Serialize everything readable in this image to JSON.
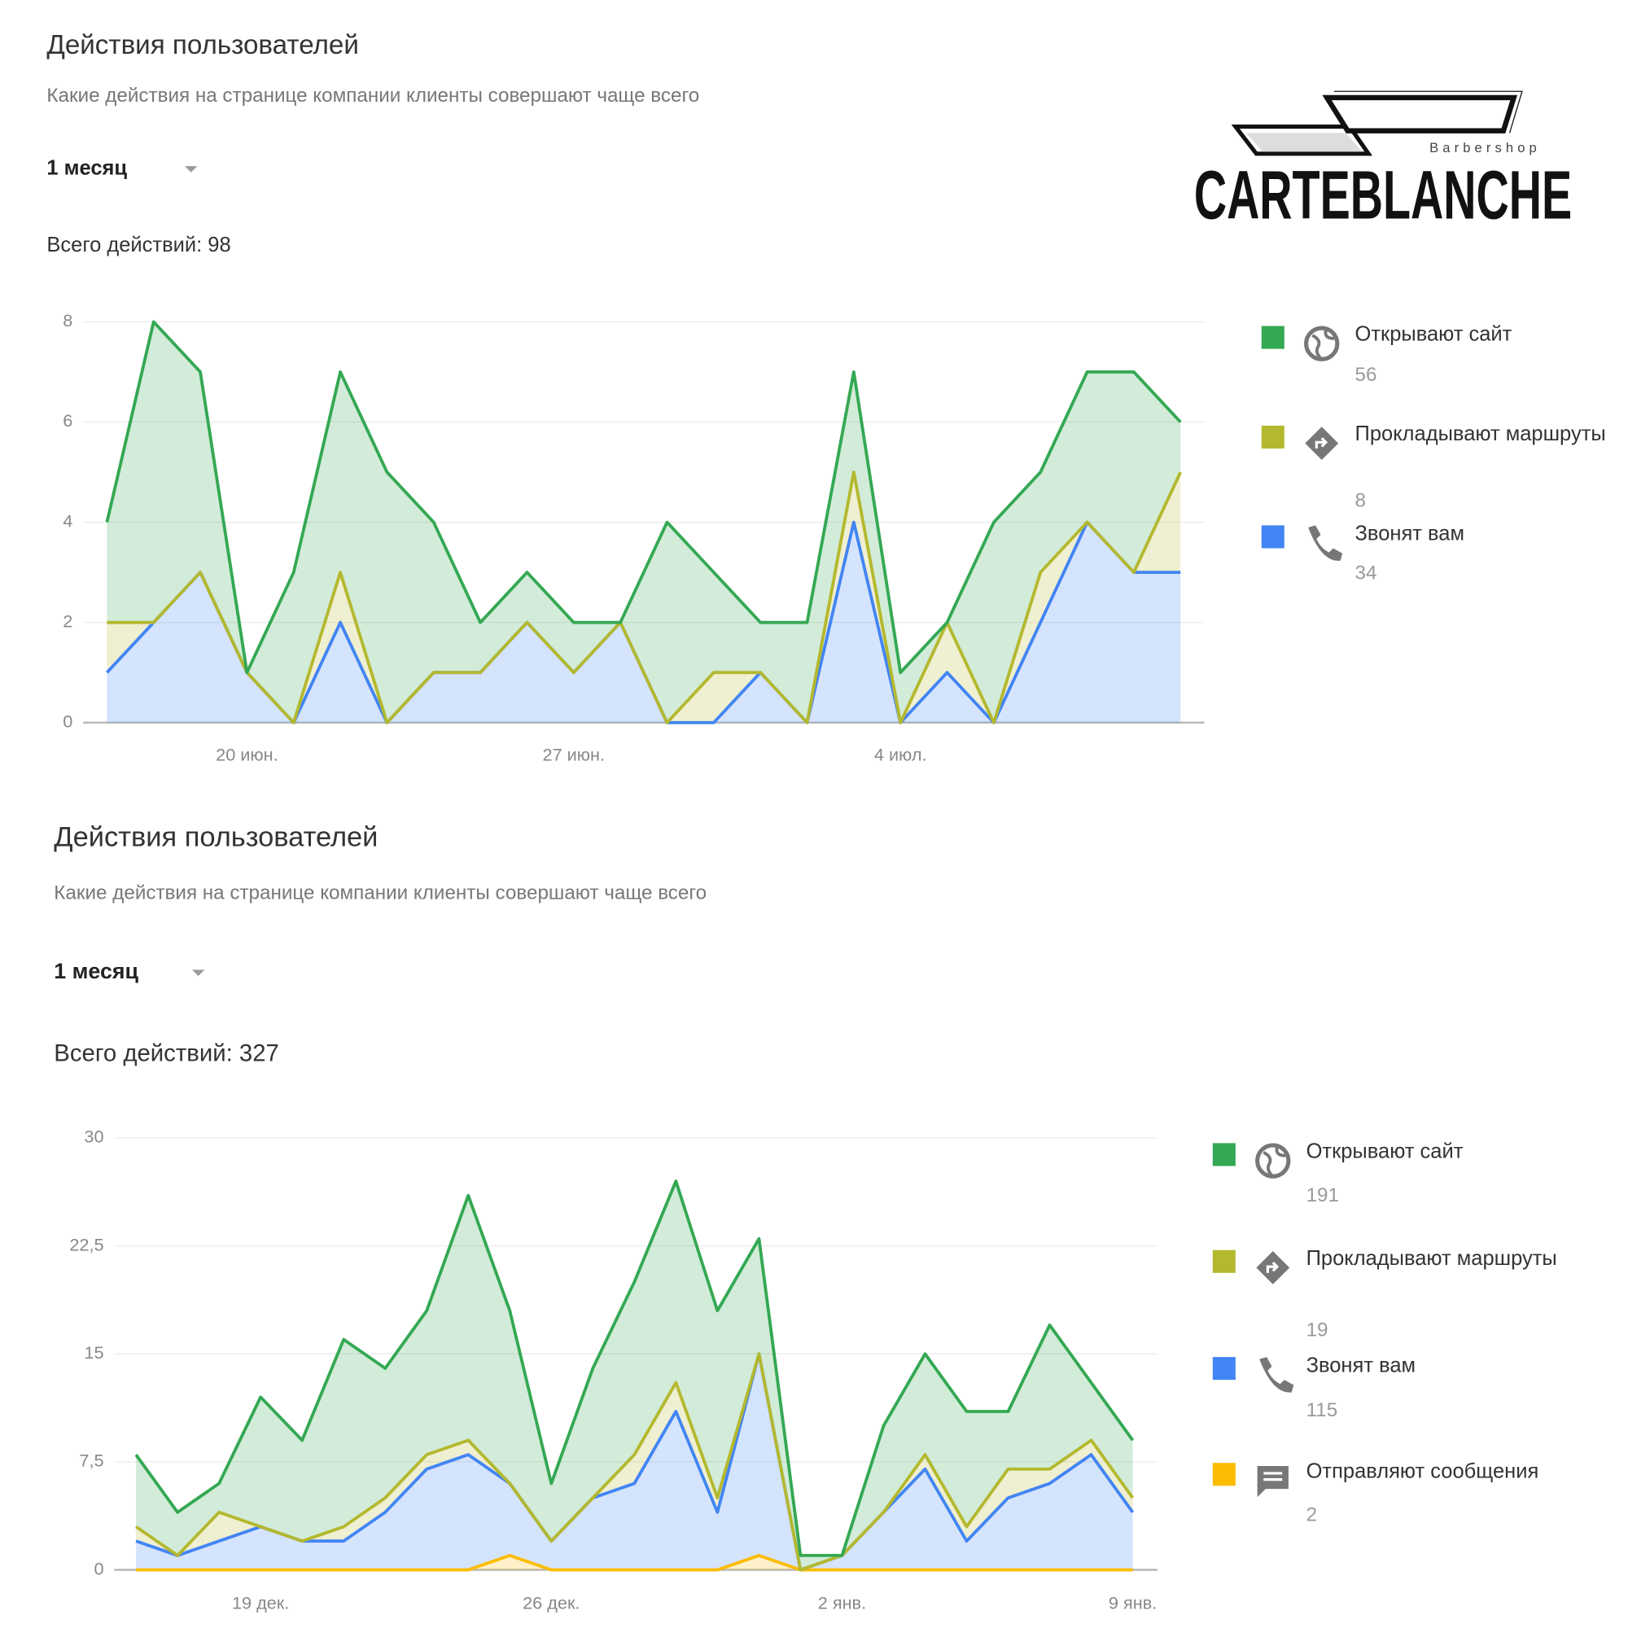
{
  "logo": {
    "name": "CARTEBLANCHE",
    "tagline": "Barbershop"
  },
  "chart_data": [
    {
      "type": "area",
      "stacked": true,
      "title": "Действия пользователей",
      "subtitle": "Какие действия на странице компании клиенты совершают чаще всего",
      "period": "1 месяц",
      "total": "Всего действий: 98",
      "categories": [
        null,
        null,
        null,
        "20 июн.",
        null,
        null,
        null,
        null,
        null,
        null,
        "27 июн.",
        null,
        null,
        null,
        null,
        null,
        null,
        "4 июл.",
        null,
        null,
        null,
        null,
        null,
        null
      ],
      "series": [
        {
          "name": "Открывают сайт",
          "total": 56,
          "color": "#34a853",
          "values": [
            2,
            6,
            4,
            0,
            3,
            4,
            5,
            3,
            1,
            1,
            1,
            0,
            4,
            2,
            1,
            2,
            2,
            1,
            0,
            4,
            2,
            3,
            4,
            1
          ]
        },
        {
          "name": "Прокладывают маршруты",
          "total": 8,
          "color": "#b4b82e",
          "values": [
            1,
            0,
            0,
            0,
            0,
            1,
            0,
            0,
            0,
            0,
            0,
            0,
            0,
            1,
            0,
            0,
            1,
            0,
            1,
            0,
            1,
            0,
            0,
            2
          ]
        },
        {
          "name": "Звонят вам",
          "total": 34,
          "color": "#4285f4",
          "values": [
            1,
            2,
            3,
            1,
            0,
            2,
            0,
            1,
            1,
            2,
            1,
            2,
            0,
            0,
            1,
            0,
            4,
            0,
            1,
            0,
            2,
            4,
            3,
            3
          ]
        }
      ],
      "ylim": [
        0,
        8
      ],
      "yticks": [
        0,
        2,
        4,
        6,
        8
      ],
      "grid": true,
      "legend": "right"
    },
    {
      "type": "area",
      "stacked": true,
      "title": "Действия пользователей",
      "subtitle": "Какие действия на странице компании клиенты совершают чаще всего",
      "period": "1 месяц",
      "total": "Всего действий: 327",
      "categories": [
        null,
        null,
        null,
        "19 дек.",
        null,
        null,
        null,
        null,
        null,
        null,
        "26 дек.",
        null,
        null,
        null,
        null,
        null,
        null,
        "2 янв.",
        null,
        null,
        null,
        null,
        null,
        null,
        "9 янв."
      ],
      "series": [
        {
          "name": "Открывают сайт",
          "total": 191,
          "color": "#34a853",
          "values": [
            5,
            3,
            2,
            9,
            7,
            13,
            9,
            10,
            17,
            12,
            4,
            9,
            12,
            14,
            13,
            8,
            1,
            0,
            6,
            7,
            8,
            4,
            10,
            4,
            4
          ]
        },
        {
          "name": "Прокладывают маршруты",
          "total": 19,
          "color": "#b4b82e",
          "values": [
            1,
            0,
            2,
            0,
            0,
            1,
            1,
            1,
            1,
            0,
            0,
            0,
            2,
            2,
            1,
            0,
            0,
            0,
            0,
            1,
            1,
            2,
            1,
            1,
            1
          ]
        },
        {
          "name": "Звонят вам",
          "total": 115,
          "color": "#4285f4",
          "values": [
            2,
            1,
            2,
            3,
            2,
            2,
            4,
            7,
            8,
            5,
            2,
            5,
            6,
            11,
            4,
            14,
            0,
            1,
            4,
            7,
            2,
            5,
            6,
            8,
            4
          ]
        },
        {
          "name": "Отправляют сообщения",
          "total": 2,
          "color": "#fbbc04",
          "values": [
            0,
            0,
            0,
            0,
            0,
            0,
            0,
            0,
            0,
            1,
            0,
            0,
            0,
            0,
            0,
            1,
            0,
            0,
            0,
            0,
            0,
            0,
            0,
            0,
            0
          ]
        }
      ],
      "ylim": [
        0,
        30
      ],
      "yticks": [
        0,
        {
          "value": 7.5,
          "label": "7,5"
        },
        15,
        {
          "value": 22.5,
          "label": "22,5"
        },
        30
      ],
      "grid": true,
      "legend": "right"
    }
  ]
}
